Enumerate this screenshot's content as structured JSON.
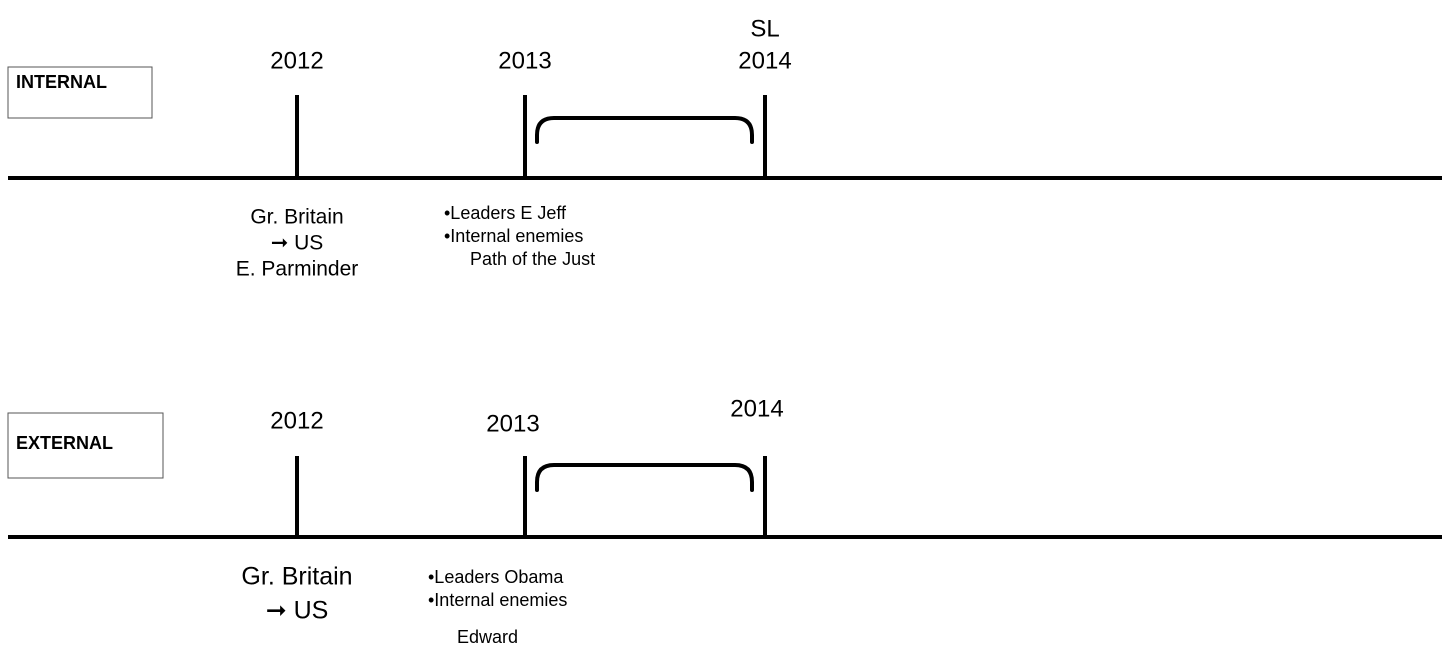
{
  "timelines": [
    {
      "label": "INTERNAL",
      "years": [
        "2012",
        "2013",
        "2014"
      ],
      "annotation": "SL",
      "notes": [
        "Gr. Britain",
        "➞ US",
        "E. Parminder"
      ],
      "bullets": [
        "•Leaders E Jeff",
        "•Internal enemies",
        "Path of the Just"
      ]
    },
    {
      "label": "EXTERNAL",
      "years": [
        "2012",
        "2013",
        "2014"
      ],
      "notes": [
        "Gr. Britain",
        "➞ US"
      ],
      "bullets": [
        "•Leaders Obama",
        "•Internal enemies",
        "Edward"
      ]
    }
  ]
}
